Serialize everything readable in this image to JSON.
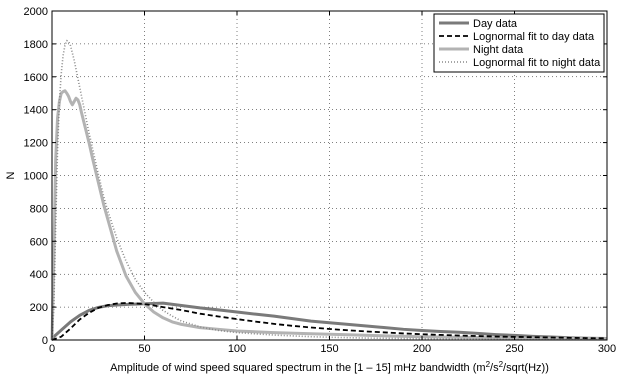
{
  "chart_data": {
    "type": "line",
    "xlabel_pre": "Amplitude of wind speed squared spectrum in the [1 – 15] mHz bandwidth (m",
    "xlabel_sup1": "2",
    "xlabel_mid": "/s",
    "xlabel_sup2": "2",
    "xlabel_post": "/sqrt(Hz))",
    "ylabel": "N",
    "xlim": [
      0,
      300
    ],
    "ylim": [
      0,
      2000
    ],
    "xticks": [
      "0",
      "50",
      "100",
      "150",
      "200",
      "250",
      "300"
    ],
    "yticks": [
      "0",
      "200",
      "400",
      "600",
      "800",
      "1000",
      "1200",
      "1400",
      "1600",
      "1800",
      "2000"
    ],
    "grid": true,
    "legend_position": "top-right",
    "series": [
      {
        "name": "Day data",
        "color": "#7a7a7a",
        "style": "solid",
        "x": [
          0,
          5,
          10,
          15,
          20,
          25,
          30,
          35,
          40,
          45,
          50,
          55,
          60,
          70,
          80,
          90,
          100,
          110,
          120,
          130,
          140,
          150,
          160,
          170,
          180,
          190,
          200,
          210,
          220,
          230,
          240,
          250,
          260,
          270,
          280,
          290,
          300
        ],
        "y": [
          10,
          60,
          110,
          150,
          180,
          198,
          208,
          213,
          216,
          218,
          220,
          222,
          224,
          210,
          195,
          183,
          170,
          157,
          145,
          130,
          115,
          105,
          95,
          85,
          75,
          65,
          58,
          52,
          47,
          40,
          33,
          28,
          22,
          18,
          14,
          11,
          9
        ]
      },
      {
        "name": "Lognormal fit to day data",
        "color": "#000000",
        "style": "dashed",
        "x": [
          0,
          5,
          10,
          15,
          20,
          25,
          30,
          35,
          40,
          45,
          50,
          55,
          60,
          70,
          80,
          90,
          100,
          110,
          120,
          130,
          140,
          150,
          160,
          170,
          180,
          190,
          200,
          210,
          220,
          230,
          240,
          250,
          260,
          270,
          280,
          290,
          300
        ],
        "y": [
          0,
          20,
          70,
          125,
          165,
          195,
          212,
          222,
          225,
          223,
          218,
          210,
          200,
          182,
          160,
          143,
          127,
          112,
          98,
          86,
          76,
          67,
          59,
          52,
          46,
          40,
          35,
          31,
          27,
          24,
          21,
          19,
          17,
          15,
          13,
          11,
          10
        ]
      },
      {
        "name": "Night data",
        "color": "#b3b3b3",
        "style": "solid",
        "x": [
          0,
          1,
          2,
          3,
          4,
          5,
          6,
          7,
          8,
          9,
          10,
          11,
          12,
          13,
          14,
          15,
          16,
          18,
          20,
          22,
          25,
          28,
          30,
          33,
          35,
          38,
          40,
          45,
          50,
          55,
          60,
          65,
          70,
          80,
          90,
          100,
          120,
          140,
          160,
          180,
          200,
          250,
          300
        ],
        "y": [
          0,
          500,
          1100,
          1350,
          1450,
          1500,
          1510,
          1515,
          1500,
          1480,
          1450,
          1430,
          1450,
          1470,
          1460,
          1430,
          1380,
          1290,
          1200,
          1100,
          960,
          820,
          740,
          620,
          540,
          450,
          390,
          290,
          220,
          170,
          135,
          110,
          95,
          75,
          65,
          55,
          45,
          38,
          32,
          25,
          20,
          12,
          8
        ]
      },
      {
        "name": "Lognormal fit to night data",
        "color": "#888888",
        "style": "dotted",
        "x": [
          0,
          1,
          2,
          3,
          4,
          5,
          6,
          7,
          8,
          9,
          10,
          12,
          14,
          16,
          18,
          20,
          22,
          25,
          28,
          30,
          35,
          40,
          45,
          50,
          55,
          60,
          65,
          70,
          80,
          90,
          100,
          120,
          140,
          160,
          180,
          200,
          250,
          300
        ],
        "y": [
          0,
          200,
          700,
          1150,
          1450,
          1620,
          1730,
          1790,
          1820,
          1815,
          1790,
          1700,
          1590,
          1480,
          1370,
          1260,
          1160,
          1010,
          870,
          790,
          620,
          480,
          370,
          290,
          230,
          180,
          145,
          115,
          80,
          58,
          45,
          30,
          20,
          14,
          10,
          8,
          4,
          2
        ]
      }
    ]
  }
}
